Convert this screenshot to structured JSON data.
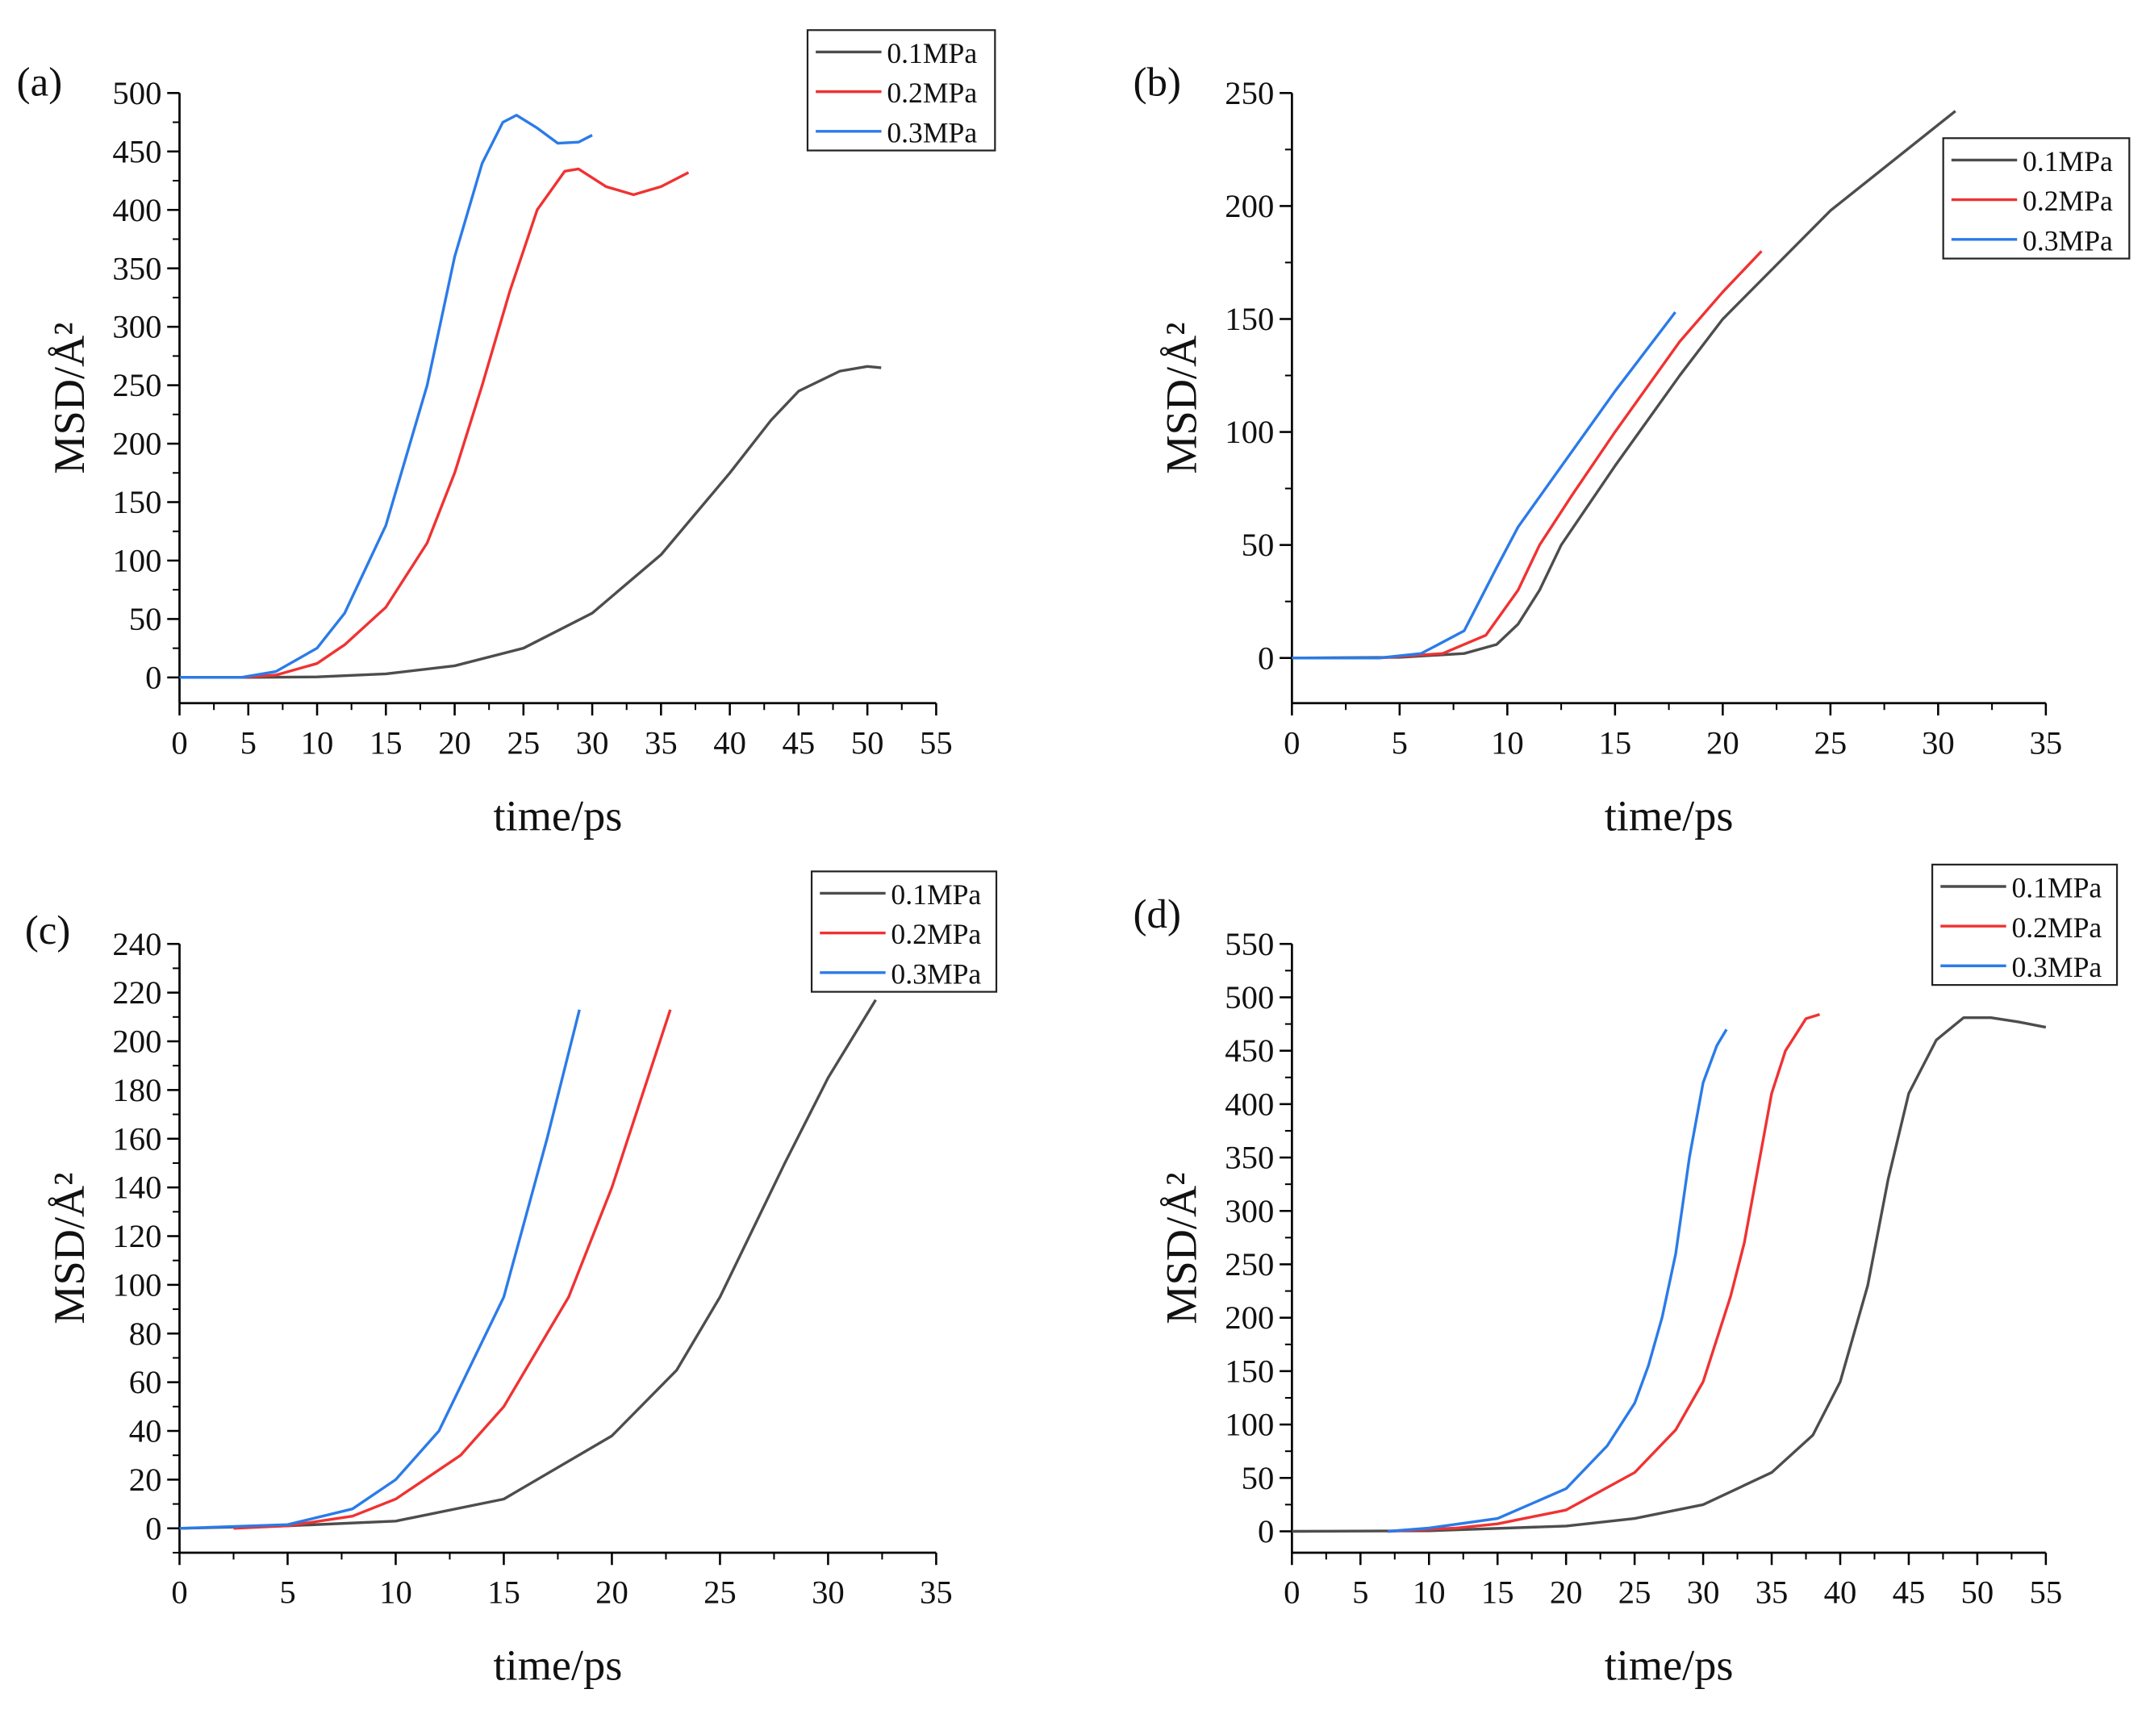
{
  "colors": {
    "0.1MPa": "#4d4d4d",
    "0.2MPa": "#f03232",
    "0.3MPa": "#2b7be8"
  },
  "chart_data": [
    {
      "panel": "(a)",
      "type": "line",
      "xlabel": "time/ps",
      "ylabel": "MSD/Å²",
      "xlim": [
        0,
        55
      ],
      "ylim": [
        -22,
        500
      ],
      "xticks": [
        0,
        5,
        10,
        15,
        20,
        25,
        30,
        35,
        40,
        45,
        50,
        55
      ],
      "yticks": [
        0,
        50,
        100,
        150,
        200,
        250,
        300,
        350,
        400,
        450,
        500
      ],
      "legend": "top-right",
      "series": [
        {
          "name": "0.1MPa",
          "points": [
            [
              0,
              0
            ],
            [
              5,
              0
            ],
            [
              10,
              0.5
            ],
            [
              15,
              3
            ],
            [
              20,
              10
            ],
            [
              25,
              25
            ],
            [
              30,
              55
            ],
            [
              35,
              105
            ],
            [
              40,
              175
            ],
            [
              43,
              220
            ],
            [
              45,
              245
            ],
            [
              48,
              262
            ],
            [
              50,
              266
            ],
            [
              51,
              265
            ]
          ]
        },
        {
          "name": "0.2MPa",
          "points": [
            [
              4.5,
              0
            ],
            [
              7,
              2
            ],
            [
              10,
              12
            ],
            [
              12,
              28
            ],
            [
              15,
              60
            ],
            [
              18,
              115
            ],
            [
              20,
              175
            ],
            [
              22,
              250
            ],
            [
              24,
              330
            ],
            [
              26,
              400
            ],
            [
              28,
              433
            ],
            [
              29,
              435
            ],
            [
              31,
              420
            ],
            [
              33,
              413
            ],
            [
              35,
              420
            ],
            [
              37,
              432
            ]
          ]
        },
        {
          "name": "0.3MPa",
          "points": [
            [
              0,
              0
            ],
            [
              4.5,
              0
            ],
            [
              7,
              5
            ],
            [
              10,
              25
            ],
            [
              12,
              55
            ],
            [
              15,
              130
            ],
            [
              18,
              250
            ],
            [
              20,
              360
            ],
            [
              22,
              440
            ],
            [
              23.5,
              475
            ],
            [
              24.5,
              481
            ],
            [
              26,
              470
            ],
            [
              27.5,
              457
            ],
            [
              29,
              458
            ],
            [
              30,
              464
            ]
          ]
        }
      ]
    },
    {
      "panel": "(b)",
      "type": "line",
      "xlabel": "time/ps",
      "ylabel": "MSD/Å²",
      "xlim": [
        0,
        35
      ],
      "ylim": [
        -20,
        250
      ],
      "xticks": [
        0,
        5,
        10,
        15,
        20,
        25,
        30,
        35
      ],
      "yticks": [
        0,
        50,
        100,
        150,
        200,
        250
      ],
      "legend": "top-right",
      "series": [
        {
          "name": "0.1MPa",
          "points": [
            [
              0,
              0
            ],
            [
              5,
              0.3
            ],
            [
              8,
              2
            ],
            [
              9.5,
              6
            ],
            [
              10.5,
              15
            ],
            [
              11.5,
              30
            ],
            [
              12.5,
              50
            ],
            [
              15,
              85
            ],
            [
              18,
              125
            ],
            [
              20,
              150
            ],
            [
              25,
              198
            ],
            [
              30.8,
              242
            ]
          ]
        },
        {
          "name": "0.2MPa",
          "points": [
            [
              4,
              0
            ],
            [
              7,
              2
            ],
            [
              9,
              10
            ],
            [
              10.5,
              30
            ],
            [
              11.5,
              50
            ],
            [
              13,
              72
            ],
            [
              15,
              100
            ],
            [
              18,
              140
            ],
            [
              20,
              162
            ],
            [
              21.8,
              180
            ]
          ]
        },
        {
          "name": "0.3MPa",
          "points": [
            [
              0,
              0
            ],
            [
              4,
              0
            ],
            [
              6,
              2
            ],
            [
              8,
              12
            ],
            [
              9.5,
              40
            ],
            [
              10.5,
              58
            ],
            [
              12,
              78
            ],
            [
              15,
              118
            ],
            [
              17.8,
              153
            ]
          ]
        }
      ]
    },
    {
      "panel": "(c)",
      "type": "line",
      "xlabel": "time/ps",
      "ylabel": "MSD/Å²",
      "xlim": [
        0,
        35
      ],
      "ylim": [
        -10,
        240
      ],
      "xticks": [
        0,
        5,
        10,
        15,
        20,
        25,
        30,
        35
      ],
      "yticks": [
        0,
        20,
        40,
        60,
        80,
        100,
        120,
        140,
        160,
        180,
        200,
        220,
        240
      ],
      "legend": "top-right",
      "series": [
        {
          "name": "0.1MPa",
          "points": [
            [
              0,
              0
            ],
            [
              5,
              1
            ],
            [
              10,
              3
            ],
            [
              15,
              12
            ],
            [
              20,
              38
            ],
            [
              23,
              65
            ],
            [
              25,
              95
            ],
            [
              28,
              150
            ],
            [
              30,
              185
            ],
            [
              32.2,
              217
            ]
          ]
        },
        {
          "name": "0.2MPa",
          "points": [
            [
              2.5,
              0
            ],
            [
              5,
              1
            ],
            [
              8,
              5
            ],
            [
              10,
              12
            ],
            [
              13,
              30
            ],
            [
              15,
              50
            ],
            [
              18,
              95
            ],
            [
              20,
              140
            ],
            [
              22.7,
              213
            ]
          ]
        },
        {
          "name": "0.3MPa",
          "points": [
            [
              0,
              0
            ],
            [
              5,
              1.5
            ],
            [
              8,
              8
            ],
            [
              10,
              20
            ],
            [
              12,
              40
            ],
            [
              15,
              95
            ],
            [
              17,
              160
            ],
            [
              18.5,
              213
            ]
          ]
        }
      ]
    },
    {
      "panel": "(d)",
      "type": "line",
      "xlabel": "time/ps",
      "ylabel": "MSD/Å²",
      "xlim": [
        0,
        55
      ],
      "ylim": [
        -20,
        550
      ],
      "xticks": [
        0,
        5,
        10,
        15,
        20,
        25,
        30,
        35,
        40,
        45,
        50,
        55
      ],
      "yticks": [
        0,
        50,
        100,
        150,
        200,
        250,
        300,
        350,
        400,
        450,
        500,
        550
      ],
      "legend": "top-right",
      "series": [
        {
          "name": "0.1MPa",
          "points": [
            [
              0,
              0
            ],
            [
              10,
              0.5
            ],
            [
              20,
              5
            ],
            [
              25,
              12
            ],
            [
              30,
              25
            ],
            [
              35,
              55
            ],
            [
              38,
              90
            ],
            [
              40,
              140
            ],
            [
              42,
              230
            ],
            [
              43.5,
              330
            ],
            [
              45,
              410
            ],
            [
              47,
              460
            ],
            [
              49,
              481
            ],
            [
              51,
              481
            ],
            [
              53,
              477
            ],
            [
              55,
              472
            ]
          ]
        },
        {
          "name": "0.2MPa",
          "points": [
            [
              7,
              0
            ],
            [
              12,
              3
            ],
            [
              15,
              7
            ],
            [
              20,
              20
            ],
            [
              25,
              55
            ],
            [
              28,
              95
            ],
            [
              30,
              140
            ],
            [
              32,
              220
            ],
            [
              33,
              270
            ],
            [
              34,
              340
            ],
            [
              35,
              410
            ],
            [
              36,
              450
            ],
            [
              37.5,
              480
            ],
            [
              38.5,
              484
            ]
          ]
        },
        {
          "name": "0.3MPa",
          "points": [
            [
              7,
              0
            ],
            [
              10,
              3
            ],
            [
              15,
              12
            ],
            [
              20,
              40
            ],
            [
              23,
              80
            ],
            [
              25,
              120
            ],
            [
              26,
              155
            ],
            [
              27,
              200
            ],
            [
              28,
              260
            ],
            [
              29,
              350
            ],
            [
              30,
              420
            ],
            [
              31,
              455
            ],
            [
              31.7,
              470
            ]
          ]
        }
      ]
    }
  ]
}
